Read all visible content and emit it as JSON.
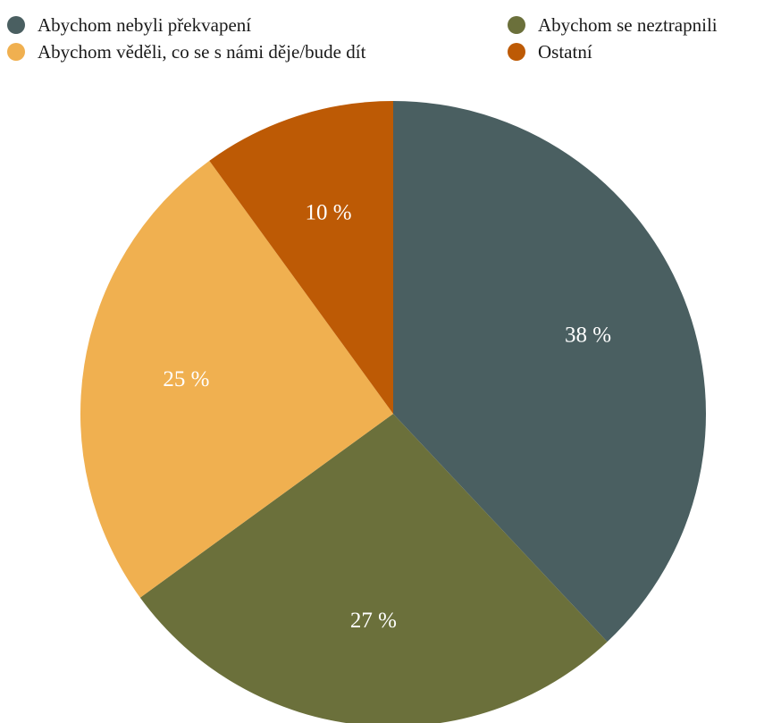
{
  "chart_data": {
    "type": "pie",
    "title": "",
    "legend_position": "top",
    "categories": [
      "Abychom nebyli překvapení",
      "Abychom se neztrapnili",
      "Abychom věděli, co se s námi děje/bude dít",
      "Ostatní"
    ],
    "values": [
      38,
      27,
      25,
      10
    ],
    "labels": [
      "38 %",
      "27 %",
      "25 %",
      "10 %"
    ],
    "colors": [
      "#4a5f61",
      "#6b703b",
      "#f0b050",
      "#bd5a05"
    ],
    "start_angle_deg": 0,
    "direction": "clockwise"
  }
}
